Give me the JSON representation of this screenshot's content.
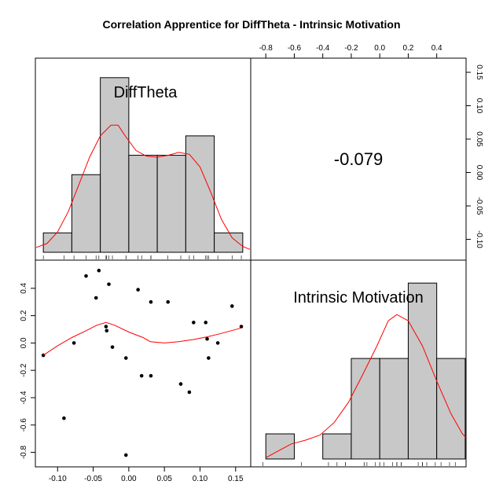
{
  "chart_data": {
    "type": "pairs",
    "title": "Correlation Apprentice for DiffTheta - Intrinsic Motivation",
    "variables": [
      "DiffTheta",
      "Intrinsic Motivation"
    ],
    "correlation_label": "-0.079",
    "x_ticks_bottom": [
      -0.1,
      -0.05,
      0.0,
      0.05,
      0.1,
      0.15
    ],
    "x_tick_labels_bottom": [
      "-0.10",
      "-0.05",
      "0.00",
      "0.05",
      "0.10",
      "0.15"
    ],
    "x_ticks_top": [
      -0.8,
      -0.6,
      -0.4,
      -0.2,
      0.0,
      0.2,
      0.4
    ],
    "x_tick_labels_top": [
      "-0.8",
      "-0.6",
      "-0.4",
      "-0.2",
      "0.0",
      "0.2",
      "0.4"
    ],
    "y_ticks_left": [
      -0.8,
      -0.6,
      -0.4,
      -0.2,
      0.0,
      0.2,
      0.4
    ],
    "y_tick_labels_left": [
      "-0.8",
      "-0.6",
      "-0.4",
      "-0.2",
      "0.0",
      "0.2",
      "0.4"
    ],
    "y_ticks_right": [
      -0.1,
      -0.05,
      0.0,
      0.05,
      0.1,
      0.15
    ],
    "y_tick_labels_right": [
      "-0.10",
      "-0.05",
      "0.00",
      "0.05",
      "0.10",
      "0.15"
    ],
    "diff_range": [
      -0.12,
      0.16
    ],
    "im_range": [
      -0.85,
      0.55
    ],
    "diff_hist": {
      "breaks": [
        -0.12,
        -0.08,
        -0.04,
        0.0,
        0.04,
        0.08,
        0.12,
        0.16
      ],
      "counts": [
        1,
        4,
        9,
        5,
        5,
        6,
        1
      ]
    },
    "diff_density": [
      [
        -0.13,
        0.25
      ],
      [
        -0.115,
        0.45
      ],
      [
        -0.1,
        1.05
      ],
      [
        -0.085,
        2.1
      ],
      [
        -0.07,
        3.5
      ],
      [
        -0.055,
        4.9
      ],
      [
        -0.04,
        6.0
      ],
      [
        -0.025,
        6.55
      ],
      [
        -0.015,
        6.55
      ],
      [
        -0.005,
        6.0
      ],
      [
        0.01,
        5.25
      ],
      [
        0.025,
        4.95
      ],
      [
        0.04,
        4.9
      ],
      [
        0.055,
        5.0
      ],
      [
        0.07,
        5.15
      ],
      [
        0.085,
        5.05
      ],
      [
        0.1,
        4.4
      ],
      [
        0.115,
        3.1
      ],
      [
        0.13,
        1.7
      ],
      [
        0.145,
        0.75
      ],
      [
        0.16,
        0.3
      ],
      [
        0.17,
        0.15
      ]
    ],
    "im_hist": {
      "breaks": [
        -0.8,
        -0.6,
        -0.4,
        -0.2,
        0.0,
        0.2,
        0.4,
        0.6
      ],
      "counts": [
        1,
        0,
        1,
        4,
        4,
        7,
        4
      ]
    },
    "im_density": [
      [
        -0.8,
        0.05
      ],
      [
        -0.72,
        0.3
      ],
      [
        -0.62,
        0.6
      ],
      [
        -0.52,
        0.75
      ],
      [
        -0.42,
        0.95
      ],
      [
        -0.32,
        1.45
      ],
      [
        -0.22,
        2.25
      ],
      [
        -0.12,
        3.35
      ],
      [
        -0.02,
        4.5
      ],
      [
        0.06,
        5.5
      ],
      [
        0.12,
        5.75
      ],
      [
        0.2,
        5.5
      ],
      [
        0.3,
        4.5
      ],
      [
        0.4,
        3.1
      ],
      [
        0.5,
        1.8
      ],
      [
        0.58,
        1.0
      ],
      [
        0.65,
        0.6
      ]
    ],
    "points": [
      [
        -0.12,
        -0.09
      ],
      [
        -0.091,
        -0.55
      ],
      [
        -0.077,
        0.0
      ],
      [
        -0.06,
        0.49
      ],
      [
        -0.046,
        0.33
      ],
      [
        -0.042,
        0.53
      ],
      [
        -0.032,
        0.12
      ],
      [
        -0.031,
        0.09
      ],
      [
        -0.028,
        0.43
      ],
      [
        -0.023,
        -0.03
      ],
      [
        -0.004,
        -0.11
      ],
      [
        -0.004,
        -0.82
      ],
      [
        0.013,
        0.39
      ],
      [
        0.018,
        -0.24
      ],
      [
        0.031,
        0.3
      ],
      [
        0.031,
        -0.24
      ],
      [
        0.055,
        0.3
      ],
      [
        0.073,
        -0.3
      ],
      [
        0.085,
        -0.36
      ],
      [
        0.091,
        0.15
      ],
      [
        0.108,
        0.15
      ],
      [
        0.11,
        0.03
      ],
      [
        0.112,
        -0.11
      ],
      [
        0.125,
        0.0
      ],
      [
        0.145,
        0.27
      ],
      [
        0.158,
        0.12
      ]
    ],
    "lowess": [
      [
        -0.12,
        -0.09
      ],
      [
        -0.1,
        -0.02
      ],
      [
        -0.08,
        0.04
      ],
      [
        -0.06,
        0.09
      ],
      [
        -0.045,
        0.13
      ],
      [
        -0.032,
        0.15
      ],
      [
        -0.02,
        0.13
      ],
      [
        0.0,
        0.08
      ],
      [
        0.02,
        0.04
      ],
      [
        0.03,
        0.01
      ],
      [
        0.05,
        0.0
      ],
      [
        0.07,
        0.01
      ],
      [
        0.09,
        0.025
      ],
      [
        0.11,
        0.045
      ],
      [
        0.13,
        0.07
      ],
      [
        0.158,
        0.11
      ]
    ],
    "colors": {
      "hist_fill": "#c8c8c8",
      "hist_stroke": "#000000",
      "density": "#ff0000",
      "points": "#000000"
    }
  }
}
